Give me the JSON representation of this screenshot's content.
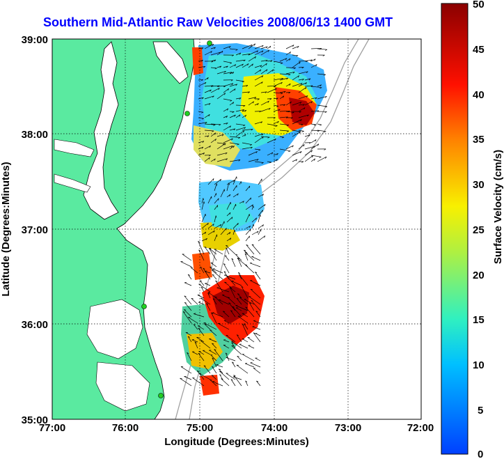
{
  "title": "Southern Mid-Atlantic Raw Velocities 2008/06/13 1400 GMT",
  "xlabel": "Longitude (Degrees:Minutes)",
  "ylabel": "Latitude (Degrees:Minutes)",
  "x_ticks": [
    "77:00",
    "76:00",
    "75:00",
    "74:00",
    "73:00",
    "72:00"
  ],
  "y_ticks": [
    "39:00",
    "38:00",
    "37:00",
    "36:00",
    "35:00"
  ],
  "colorbar": {
    "label": "Surface Velocity (cm/s)",
    "ticks": [
      "50",
      "45",
      "40",
      "35",
      "30",
      "25",
      "20",
      "15",
      "10",
      "5",
      "0"
    ],
    "range": [
      0,
      50
    ]
  },
  "colors": {
    "land": "#5aeaa0",
    "title": "#0000ff",
    "station": "#20d020"
  },
  "grid": true
}
